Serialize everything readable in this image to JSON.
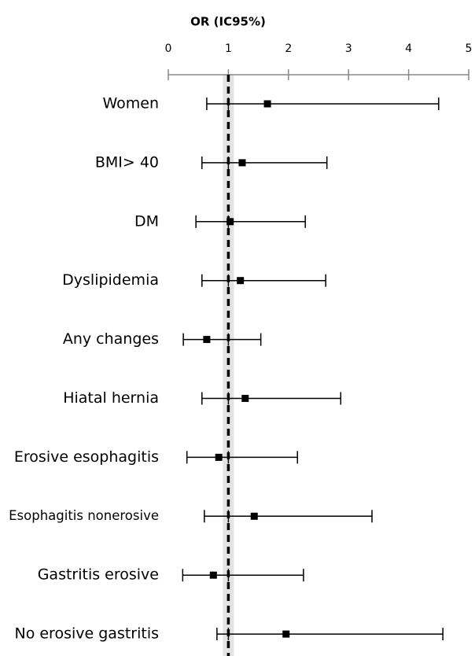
{
  "chart_data": {
    "type": "forest",
    "title": "OR (IC95%)",
    "categories": [
      "Women",
      "BMI> 40",
      "DM",
      "Dyslipidemia",
      "Any changes",
      "Hiatal hernia",
      "Erosive esophagitis",
      "Esophagitis nonerosive",
      "Gastritis erosive",
      "No erosive gastritis"
    ],
    "values": [
      1.65,
      1.23,
      1.03,
      1.2,
      0.64,
      1.28,
      0.84,
      1.43,
      0.75,
      1.96
    ],
    "lower": [
      0.64,
      0.56,
      0.46,
      0.56,
      0.25,
      0.56,
      0.31,
      0.6,
      0.24,
      0.81
    ],
    "upper": [
      4.5,
      2.64,
      2.28,
      2.62,
      1.54,
      2.87,
      2.15,
      3.39,
      2.25,
      4.57
    ],
    "xlim": [
      0,
      5
    ],
    "xticks": [
      0,
      1,
      2,
      3,
      4,
      5
    ],
    "reference": 1,
    "color": "#000000"
  }
}
